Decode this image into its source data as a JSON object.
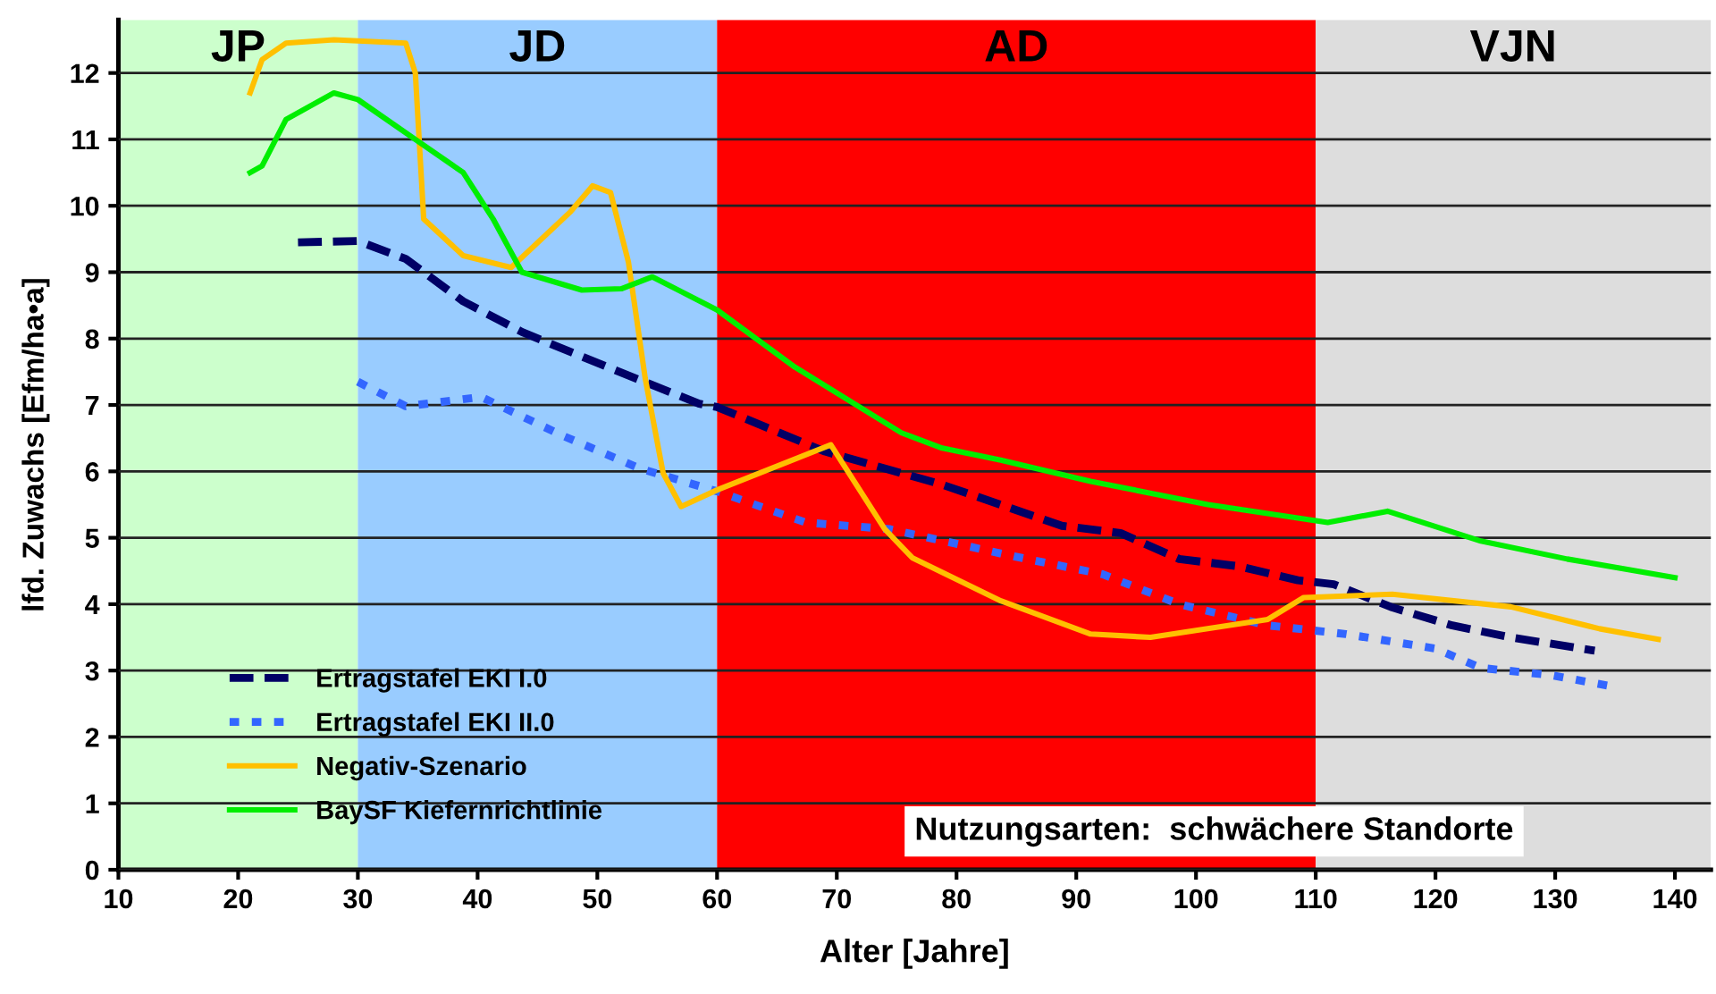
{
  "chart_data": {
    "type": "line",
    "xlabel": "Alter [Jahre]",
    "ylabel": "lfd. Zuwachs [Efm/ha•a]",
    "xlim": [
      10,
      143
    ],
    "ylim": [
      0,
      12.8
    ],
    "xticks": [
      10,
      20,
      30,
      40,
      50,
      60,
      70,
      80,
      90,
      100,
      110,
      120,
      130,
      140
    ],
    "yticks": [
      0,
      1,
      2,
      3,
      4,
      5,
      6,
      7,
      8,
      9,
      10,
      11,
      12
    ],
    "grid": "y",
    "legend": "bottom left",
    "bands": [
      {
        "axis": "x",
        "from": 10,
        "to": 30,
        "label": "JP",
        "color": "#ccffcc"
      },
      {
        "axis": "x",
        "from": 30,
        "to": 60,
        "label": "JD",
        "color": "#99ccff"
      },
      {
        "axis": "x",
        "from": 60,
        "to": 110,
        "label": "AD",
        "color": "#ff0000"
      },
      {
        "axis": "x",
        "from": 110,
        "to": 143,
        "label": "VJN",
        "color": "#dddddd"
      }
    ],
    "annotations": [
      "Nutzungsarten:  schwächere Standorte"
    ],
    "series": [
      {
        "name": "Ertragstafel EKI I.0",
        "color": "#000066",
        "line_style": "dashed",
        "x": [
          25,
          30,
          34,
          38.8,
          43.7,
          51,
          58.5,
          60,
          69,
          78.8,
          88.8,
          93.7,
          98.6,
          103.6,
          108.5,
          111.5,
          116.4,
          121.4,
          126.3,
          133.3
        ],
        "values": [
          9.45,
          9.47,
          9.2,
          8.56,
          8.1,
          7.56,
          7.02,
          6.97,
          6.3,
          5.8,
          5.18,
          5.07,
          4.68,
          4.57,
          4.36,
          4.3,
          3.95,
          3.68,
          3.5,
          3.3
        ]
      },
      {
        "name": "Ertragstafel EKI II.0",
        "color": "#3366ff",
        "line_style": "dotted",
        "x": [
          30,
          34,
          40.3,
          47.2,
          53.6,
          60,
          67.4,
          74.4,
          84.8,
          92.2,
          98.6,
          106,
          112.5,
          120,
          123.8,
          129.7,
          134.5
        ],
        "values": [
          7.35,
          6.98,
          7.12,
          6.53,
          6.04,
          5.7,
          5.23,
          5.13,
          4.72,
          4.45,
          4.0,
          3.68,
          3.55,
          3.33,
          3.04,
          2.93,
          2.77
        ]
      },
      {
        "name": "Negativ-Szenario",
        "color": "#ffc000",
        "line_style": "solid",
        "x": [
          21,
          22,
          24,
          28,
          34,
          34.8,
          35.5,
          38.8,
          42.8,
          47.7,
          49.6,
          51.1,
          52.6,
          54,
          55.5,
          57,
          60,
          69.5,
          74,
          76.3,
          83.7,
          91.2,
          96.2,
          106,
          109,
          116.4,
          126.3,
          133.7,
          138.6
        ],
        "values": [
          11.7,
          12.2,
          12.45,
          12.5,
          12.45,
          12.0,
          9.8,
          9.25,
          9.07,
          9.9,
          10.3,
          10.2,
          9.15,
          7.4,
          5.97,
          5.47,
          5.72,
          6.4,
          5.13,
          4.7,
          4.05,
          3.55,
          3.5,
          3.77,
          4.1,
          4.15,
          3.96,
          3.63,
          3.47
        ]
      },
      {
        "name": "BaySF Kiefernrichtlinie",
        "color": "#00ee00",
        "line_style": "solid",
        "x": [
          21,
          22,
          24,
          28,
          30,
          34.8,
          38.8,
          41.3,
          43.7,
          48.7,
          52,
          54.6,
          60,
          66.5,
          75.4,
          78.8,
          83.7,
          91.2,
          101,
          111,
          116,
          123.8,
          131,
          140
        ],
        "values": [
          10.5,
          10.6,
          11.3,
          11.7,
          11.6,
          11.0,
          10.5,
          9.8,
          9.0,
          8.73,
          8.75,
          8.93,
          8.43,
          7.57,
          6.58,
          6.35,
          6.17,
          5.85,
          5.5,
          5.23,
          5.4,
          4.95,
          4.68,
          4.4
        ]
      }
    ]
  }
}
